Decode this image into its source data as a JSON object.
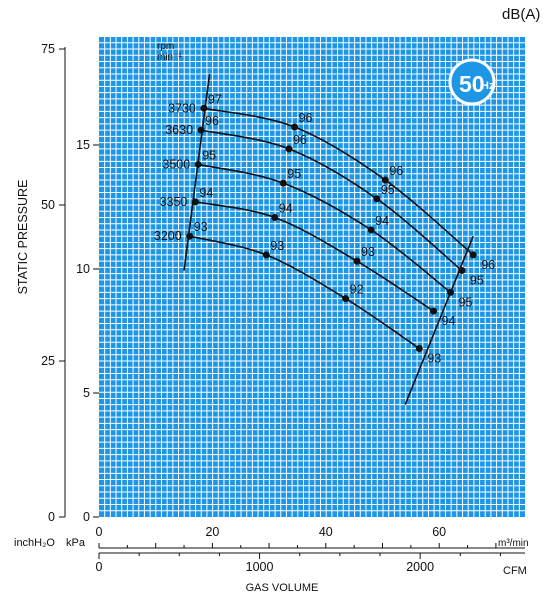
{
  "header": {
    "unit_label": "dB(A)",
    "badge_main": "50",
    "badge_sub": "Hz"
  },
  "axes": {
    "y_title": "STATIC PRESSURE",
    "y_unit_inch": "inchH₂O",
    "y_unit_kpa": "kPa",
    "x_title": "GAS VOLUME",
    "x_unit_m3": "m³/min",
    "x_unit_cfm": "CFM",
    "rpm_label": "rpm",
    "rpm_unit": "min⁻¹",
    "inch_ticks": [
      "75",
      "50",
      "25",
      "0"
    ],
    "kpa_ticks": [
      "15",
      "10",
      "5",
      "0"
    ],
    "m3_ticks": [
      "0",
      "20",
      "40",
      "60"
    ],
    "cfm_ticks": [
      "0",
      "1000",
      "2000"
    ]
  },
  "chart_data": {
    "type": "line",
    "title": "",
    "xlabel": "GAS VOLUME",
    "ylabel": "STATIC PRESSURE",
    "x_unit": "m³/min",
    "y_unit": "inchH₂O",
    "xlim": [
      0,
      74
    ],
    "ylim": [
      0,
      75
    ],
    "grid": true,
    "background": "#1e96e6",
    "series": [
      {
        "name": "3730",
        "x": [
          18.5,
          34.5,
          50.5,
          66
        ],
        "y": [
          65.5,
          62.5,
          54,
          42
        ],
        "db": [
          "97",
          "96",
          "96",
          "96"
        ]
      },
      {
        "name": "3630",
        "x": [
          18,
          33.5,
          49,
          64
        ],
        "y": [
          62,
          59,
          51,
          39.5
        ],
        "db": [
          "96",
          "96",
          "95",
          "95"
        ]
      },
      {
        "name": "3500",
        "x": [
          17.5,
          32.5,
          48,
          62
        ],
        "y": [
          56.5,
          53.5,
          46,
          36
        ],
        "db": [
          "95",
          "95",
          "94",
          "95"
        ]
      },
      {
        "name": "3350",
        "x": [
          17,
          31,
          45.5,
          59
        ],
        "y": [
          50.5,
          48,
          41,
          33
        ],
        "db": [
          "94",
          "94",
          "93",
          "94"
        ]
      },
      {
        "name": "3200",
        "x": [
          16,
          29.5,
          43.5,
          56.5
        ],
        "y": [
          45,
          42,
          35,
          27
        ],
        "db": [
          "93",
          "93",
          "92",
          "93"
        ]
      }
    ],
    "limit_lines": [
      {
        "x": [
          15,
          19.5
        ],
        "y": [
          39.5,
          71
        ]
      },
      {
        "x": [
          54,
          66
        ],
        "y": [
          18,
          45
        ]
      }
    ]
  }
}
